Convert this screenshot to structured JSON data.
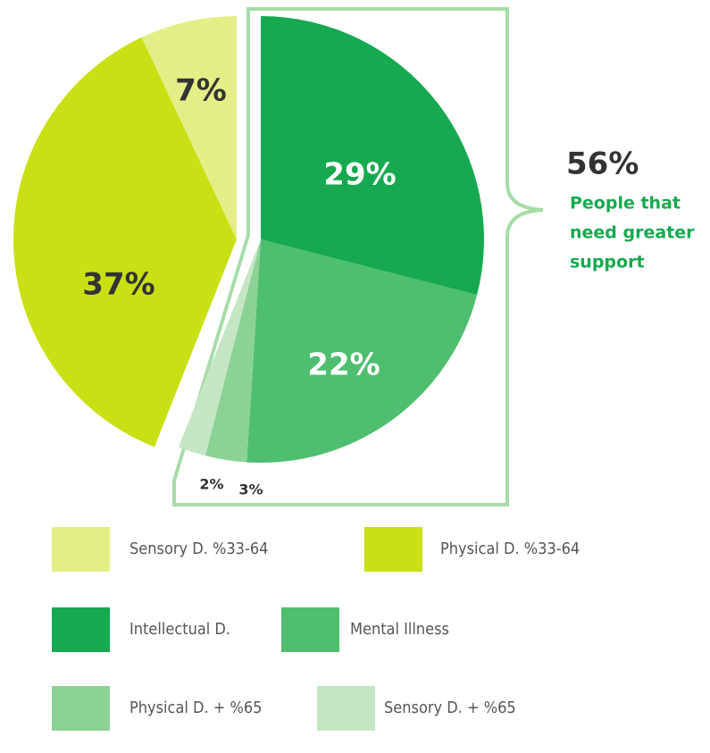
{
  "chart_data": {
    "type": "pie",
    "categories": [
      "Intellectual D.",
      "Mental Illness",
      "Physical D. + %65",
      "Sensory D. + %65",
      "Physical D. %33-64",
      "Sensory D. %33-64"
    ],
    "values": [
      29,
      22,
      3,
      2,
      37,
      7
    ],
    "value_labels": [
      "29%",
      "22%",
      "3%",
      "2%",
      "37%",
      "7%"
    ],
    "colors": [
      "#16a94f",
      "#4fbe6f",
      "#8cd294",
      "#c5e6c5",
      "#c9e014",
      "#e3ef86"
    ],
    "annotation_value": "56%",
    "annotation_text": [
      "People that",
      "need greater",
      "support"
    ],
    "legend": "bottom"
  }
}
